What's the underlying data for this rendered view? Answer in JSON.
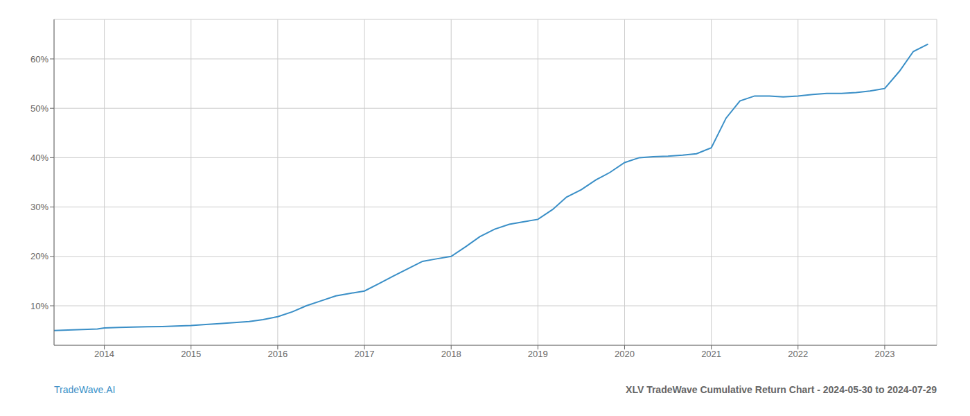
{
  "chart_data": {
    "type": "line",
    "title": "XLV TradeWave Cumulative Return Chart - 2024-05-30 to 2024-07-29",
    "annotations": [
      "TradeWave.AI"
    ],
    "x": [
      2013.42,
      2013.58,
      2013.75,
      2013.92,
      2014.0,
      2014.17,
      2014.33,
      2014.5,
      2014.67,
      2014.83,
      2015.0,
      2015.17,
      2015.33,
      2015.5,
      2015.67,
      2015.83,
      2016.0,
      2016.17,
      2016.33,
      2016.5,
      2016.67,
      2016.83,
      2017.0,
      2017.17,
      2017.33,
      2017.5,
      2017.67,
      2017.83,
      2018.0,
      2018.17,
      2018.33,
      2018.5,
      2018.67,
      2018.83,
      2019.0,
      2019.17,
      2019.33,
      2019.5,
      2019.67,
      2019.83,
      2020.0,
      2020.17,
      2020.33,
      2020.5,
      2020.67,
      2020.83,
      2021.0,
      2021.17,
      2021.33,
      2021.5,
      2021.67,
      2021.83,
      2022.0,
      2022.17,
      2022.33,
      2022.5,
      2022.67,
      2022.83,
      2023.0,
      2023.17,
      2023.33,
      2023.5
    ],
    "values": [
      5.0,
      5.1,
      5.2,
      5.3,
      5.5,
      5.6,
      5.7,
      5.75,
      5.8,
      5.9,
      6.0,
      6.2,
      6.4,
      6.6,
      6.8,
      7.2,
      7.8,
      8.8,
      10.0,
      11.0,
      12.0,
      12.5,
      13.0,
      14.5,
      16.0,
      17.5,
      19.0,
      19.5,
      20.0,
      22.0,
      24.0,
      25.5,
      26.5,
      27.0,
      27.5,
      29.5,
      32.0,
      33.5,
      35.5,
      37.0,
      39.0,
      40.0,
      40.2,
      40.3,
      40.5,
      40.8,
      42.0,
      48.0,
      51.5,
      52.5,
      52.5,
      52.3,
      52.5,
      52.8,
      53.0,
      53.0,
      53.2,
      53.5,
      54.0,
      57.5,
      61.5,
      63.0
    ],
    "color": "#3a8fc7",
    "xlim": [
      2013.42,
      2023.6
    ],
    "ylim": [
      2,
      68
    ],
    "xticks": [
      2014,
      2015,
      2016,
      2017,
      2018,
      2019,
      2020,
      2021,
      2022,
      2023
    ],
    "yticks": [
      {
        "value": 10,
        "label": "10%"
      },
      {
        "value": 20,
        "label": "20%"
      },
      {
        "value": 30,
        "label": "30%"
      },
      {
        "value": 40,
        "label": "40%"
      },
      {
        "value": 50,
        "label": "50%"
      },
      {
        "value": 60,
        "label": "60%"
      }
    ],
    "grid": true
  }
}
